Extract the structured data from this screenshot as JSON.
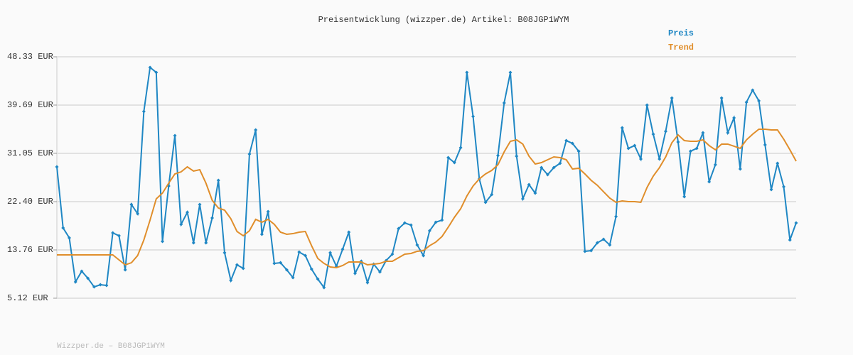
{
  "chart_data": {
    "type": "line",
    "title": "Preisentwicklung (wizzper.de) Artikel: B08JGP1WYM",
    "footer": "Wizzper.de – B08JGP1WYM",
    "ylim": [
      5.12,
      48.33
    ],
    "yticks": [
      {
        "value": 5.12,
        "label": "5.12 EUR"
      },
      {
        "value": 13.76,
        "label": "13.76 EUR"
      },
      {
        "value": 22.4,
        "label": "22.40 EUR"
      },
      {
        "value": 31.05,
        "label": "31.05 EUR"
      },
      {
        "value": 39.69,
        "label": "39.69 EUR"
      },
      {
        "value": 48.33,
        "label": "48.33 EUR"
      }
    ],
    "grid": true,
    "legend": "top-right",
    "series": [
      {
        "name": "Preis",
        "color": "#1f87c4",
        "marker": "diamond",
        "values": [
          28.63,
          17.7,
          15.92,
          8.04,
          9.95,
          8.68,
          7.15,
          7.53,
          7.41,
          16.81,
          16.3,
          10.2,
          21.9,
          20.24,
          38.54,
          46.42,
          45.53,
          15.29,
          25.2,
          34.22,
          18.34,
          20.5,
          15.03,
          21.9,
          15.03,
          19.48,
          26.22,
          13.25,
          8.3,
          11.09,
          10.46,
          30.92,
          35.24,
          16.56,
          20.63,
          11.35,
          11.47,
          10.2,
          8.81,
          13.38,
          12.75,
          10.33,
          8.55,
          7.02,
          13.25,
          10.84,
          13.89,
          16.94,
          9.57,
          11.73,
          7.92,
          11.22,
          9.82,
          11.86,
          13.0,
          17.57,
          18.59,
          18.21,
          14.65,
          12.75,
          17.19,
          18.72,
          19.1,
          30.28,
          29.39,
          32.06,
          45.53,
          37.65,
          26.47,
          22.28,
          23.68,
          30.66,
          40.07,
          45.53,
          30.54,
          22.91,
          25.45,
          23.93,
          28.5,
          27.23,
          28.5,
          29.27,
          33.33,
          32.83,
          31.43,
          13.51,
          13.63,
          15.03,
          15.67,
          14.65,
          19.73,
          35.62,
          31.94,
          32.44,
          30.03,
          39.69,
          34.48,
          30.03,
          34.99,
          40.96,
          33.08,
          23.29,
          31.43,
          31.94,
          34.73,
          25.96,
          29.01,
          40.96,
          34.73,
          37.4,
          28.25,
          40.2,
          42.36,
          40.45,
          32.57,
          24.57,
          29.27,
          25.07,
          15.54,
          18.59
        ]
      },
      {
        "name": "Trend",
        "color": "#e08e2b",
        "values": [
          12.87,
          12.87,
          12.87,
          12.87,
          12.87,
          12.87,
          12.87,
          12.87,
          12.87,
          12.87,
          11.98,
          11.09,
          11.47,
          12.75,
          15.54,
          19.1,
          22.91,
          23.93,
          25.71,
          27.36,
          27.74,
          28.63,
          27.87,
          28.12,
          25.71,
          22.66,
          21.26,
          20.88,
          19.35,
          17.06,
          16.3,
          17.19,
          19.23,
          18.72,
          19.23,
          18.34,
          16.94,
          16.56,
          16.68,
          16.94,
          17.06,
          14.52,
          12.24,
          11.35,
          10.71,
          10.59,
          10.97,
          11.6,
          11.6,
          11.6,
          11.09,
          11.22,
          11.35,
          11.73,
          11.73,
          12.37,
          13.0,
          13.13,
          13.51,
          13.63,
          14.52,
          15.16,
          16.17,
          17.83,
          19.61,
          21.13,
          23.42,
          25.2,
          26.47,
          27.36,
          27.99,
          29.01,
          31.3,
          33.21,
          33.46,
          32.7,
          30.54,
          29.14,
          29.39,
          29.9,
          30.41,
          30.28,
          29.9,
          28.25,
          28.38,
          27.36,
          26.22,
          25.33,
          24.18,
          23.04,
          22.28,
          22.53,
          22.4,
          22.4,
          22.28,
          24.94,
          26.98,
          28.5,
          30.41,
          32.95,
          34.35,
          33.33,
          33.21,
          33.21,
          33.46,
          32.44,
          31.68,
          32.7,
          32.7,
          32.32,
          31.94,
          33.46,
          34.48,
          35.37,
          35.37,
          35.24,
          35.24,
          33.59,
          31.68,
          29.65
        ]
      }
    ]
  }
}
